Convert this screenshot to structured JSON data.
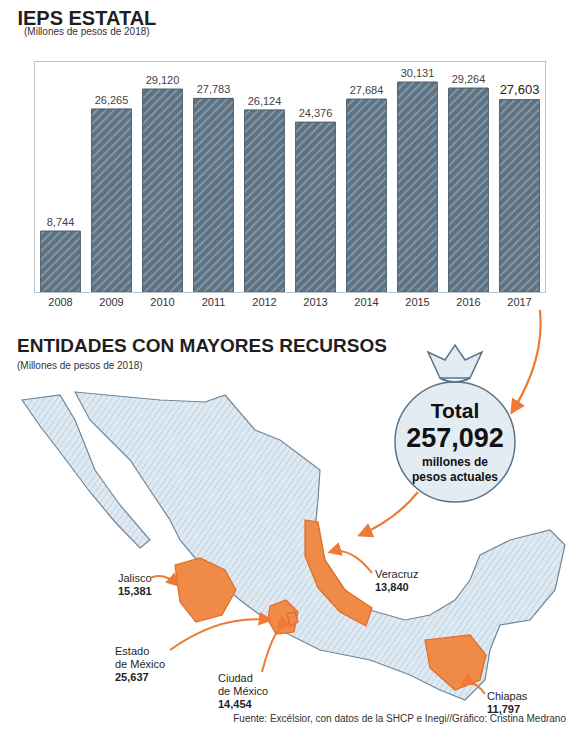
{
  "chart_data": {
    "type": "bar",
    "title": "IEPS ESTATAL",
    "subtitle": "(Millones de pesos de 2018)",
    "categories": [
      "2008",
      "2009",
      "2010",
      "2011",
      "2012",
      "2013",
      "2014",
      "2015",
      "2016",
      "2017"
    ],
    "values": [
      8744,
      26265,
      29120,
      27783,
      26124,
      24376,
      27684,
      30131,
      29264,
      27603
    ],
    "value_labels": [
      "8,744",
      "26,265",
      "29,120",
      "27,783",
      "26,124",
      "24,376",
      "27,684",
      "30,131",
      "29,264",
      "27,603"
    ],
    "color": "#5d7282",
    "ylim": [
      0,
      33000
    ],
    "data_labels": true,
    "tick_labels": "x",
    "grid": false
  },
  "map": {
    "title": "ENTIDADES CON MAYORES RECURSOS",
    "subtitle": "(Millones de pesos de 2018)",
    "total": {
      "label": "Total",
      "value": "257,092",
      "unit": "millones de pesos actuales"
    },
    "entities": [
      {
        "name": "Jalisco",
        "value": "15,381"
      },
      {
        "name": "Estado de México",
        "value": "25,637"
      },
      {
        "name": "Ciudad de México",
        "value": "14,454"
      },
      {
        "name": "Veracruz",
        "value": "13,840"
      },
      {
        "name": "Chiapas",
        "value": "11,797"
      }
    ]
  },
  "source": "Fuente: Excélsior, con datos de la SHCP e Inegi//Gráfico: Cristina Medrano"
}
